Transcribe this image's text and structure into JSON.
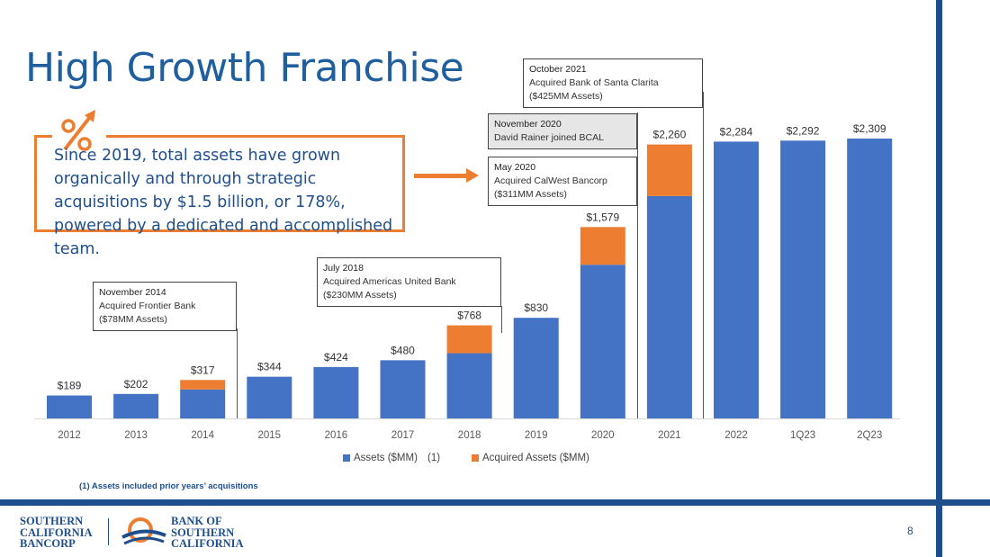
{
  "slide": {
    "title": "High Growth Franchise",
    "callout_text": "Since 2019, total assets have grown organically and through strategic acquisitions by $1.5 billion, or 178%, powered by a dedicated and accomplished team.",
    "footnote": "(1)  Assets included prior years’ acquisitions",
    "page_number": "8",
    "legend_note": "(1)"
  },
  "annotations": [
    {
      "id": "oct2021",
      "head": "October 2021",
      "lines": [
        "Acquired Bank of Santa Clarita",
        "($425MM Assets)"
      ]
    },
    {
      "id": "nov2020",
      "head": "November 2020",
      "lines": [
        "David Rainer joined BCAL"
      ]
    },
    {
      "id": "may2020",
      "head": "May 2020",
      "lines": [
        "Acquired CalWest Bancorp",
        "($311MM Assets)"
      ]
    },
    {
      "id": "jul2018",
      "head": "July 2018",
      "lines": [
        "Acquired Americas United Bank",
        "($230MM Assets)"
      ]
    },
    {
      "id": "nov2014",
      "head": "November 2014",
      "lines": [
        "Acquired Frontier Bank",
        "($78MM Assets)"
      ]
    }
  ],
  "logos": {
    "left": [
      "Southern",
      "California",
      "Bancorp"
    ],
    "right": [
      "Bank of",
      "Southern",
      "California"
    ]
  },
  "colors": {
    "assets": "#4472c4",
    "acquired": "#ed7d31",
    "brand": "#1f4e8c",
    "title": "#1f5f9e"
  },
  "chart_data": {
    "type": "bar",
    "stacked": true,
    "categories": [
      "2012",
      "2013",
      "2014",
      "2015",
      "2016",
      "2017",
      "2018",
      "2019",
      "2020",
      "2021",
      "2022",
      "1Q23",
      "2Q23"
    ],
    "series": [
      {
        "name": "Assets ($MM)",
        "values": [
          189,
          202,
          239,
          344,
          424,
          480,
          538,
          830,
          1268,
          1835,
          2284,
          2292,
          2309
        ]
      },
      {
        "name": "Acquired Assets ($MM)",
        "values": [
          0,
          0,
          78,
          0,
          0,
          0,
          230,
          0,
          311,
          425,
          0,
          0,
          0
        ]
      }
    ],
    "data_labels": [
      "$189",
      "$202",
      "$317",
      "$344",
      "$424",
      "$480",
      "$768",
      "$830",
      "$1,579",
      "$2,260",
      "$2,284",
      "$2,292",
      "$2,309"
    ],
    "legend_position": "bottom",
    "grid": false,
    "ylim": [
      0,
      2309
    ]
  }
}
